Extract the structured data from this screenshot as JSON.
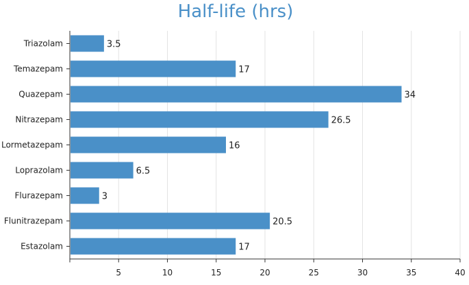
{
  "chart_data": {
    "type": "bar",
    "orientation": "horizontal",
    "title": "Half-life (hrs)",
    "xlabel": "",
    "ylabel": "",
    "categories": [
      "Triazolam",
      "Temazepam",
      "Quazepam",
      "Nitrazepam",
      "Lormetazepam",
      "Loprazolam",
      "Flurazepam",
      "Flunitrazepam",
      "Estazolam"
    ],
    "values": [
      3.5,
      17,
      34,
      26.5,
      16,
      6.5,
      3,
      20.5,
      17
    ],
    "data_labels": [
      "3.5",
      "17",
      "34",
      "26.5",
      "16",
      "6.5",
      "3",
      "20.5",
      "17"
    ],
    "xlim": [
      0,
      40
    ],
    "xticks": [
      5,
      10,
      15,
      20,
      25,
      30,
      35,
      40
    ],
    "grid": true,
    "legend": "none",
    "bar_color": "#4a90c8",
    "title_color": "#4a90c8"
  }
}
